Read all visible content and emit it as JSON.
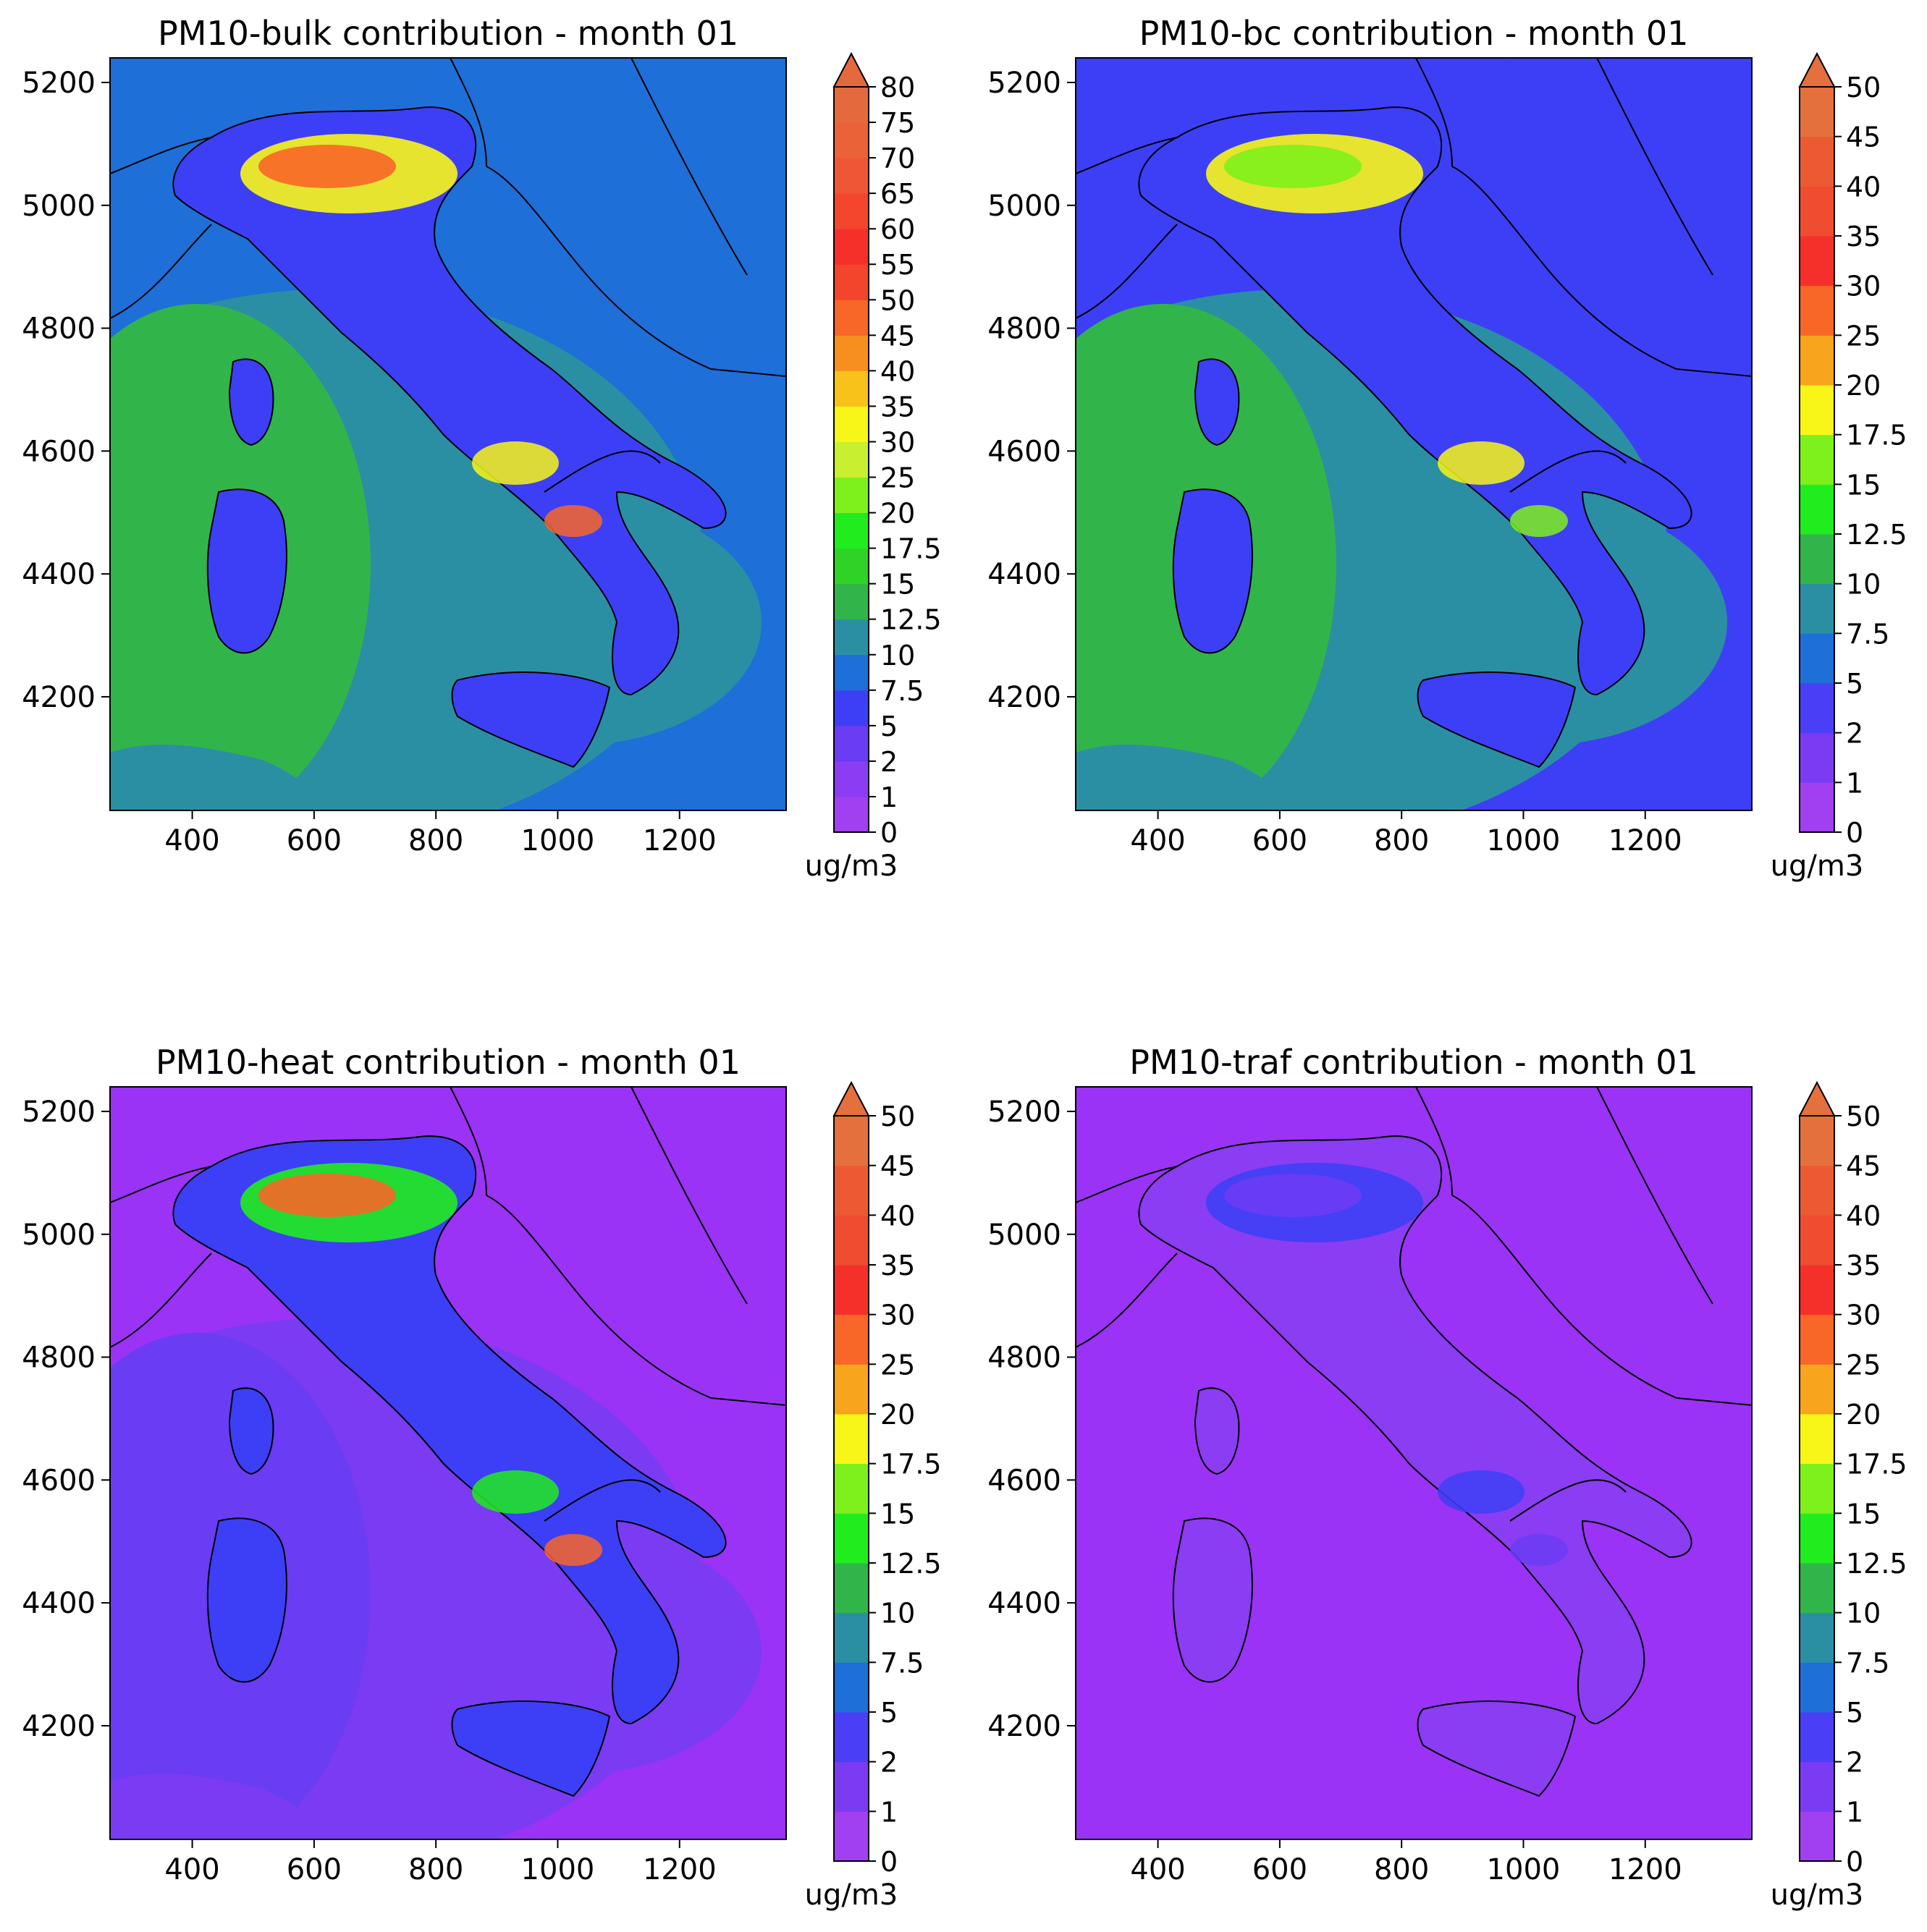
{
  "figure": {
    "panels": [
      {
        "title": "PM10-bulk contribution - month 01",
        "unit": "ug/m3",
        "x_ticks": [
          400,
          600,
          800,
          1000,
          1200
        ],
        "y_ticks": [
          5200,
          5000,
          4800,
          4600,
          4400,
          4200
        ],
        "colorbar_levels": [
          "0",
          "1",
          "2",
          "5",
          "7.5",
          "10",
          "12.5",
          "15",
          "17.5",
          "20",
          "25",
          "30",
          "35",
          "40",
          "45",
          "50",
          "55",
          "60",
          "65",
          "70",
          "75",
          "80"
        ],
        "colorbar_colors": [
          "#a040f0",
          "#8a3df2",
          "#6a3cf4",
          "#3d3ff6",
          "#1e6fd8",
          "#2b8fa3",
          "#31b54a",
          "#2fd326",
          "#20ec1e",
          "#7ef01c",
          "#c8f030",
          "#f8f618",
          "#f8c21a",
          "#f78f1e",
          "#f86628",
          "#f3442c",
          "#f5302a",
          "#f3462c",
          "#ef5636",
          "#ea6238",
          "#e46a3e"
        ],
        "field": {
          "base": "#1e6fd8",
          "sea": "#2b8fa3",
          "sea2": "#31b54a",
          "land": "#3d3ff6",
          "hot": "#f86628",
          "warm": "#f8f618"
        }
      },
      {
        "title": "PM10-bc contribution - month 01",
        "unit": "ug/m3",
        "x_ticks": [
          400,
          600,
          800,
          1000,
          1200
        ],
        "y_ticks": [
          5200,
          5000,
          4800,
          4600,
          4400,
          4200
        ],
        "colorbar_levels": [
          "0",
          "1",
          "2",
          "5",
          "7.5",
          "10",
          "12.5",
          "15",
          "17.5",
          "20",
          "25",
          "30",
          "35",
          "40",
          "45",
          "50"
        ],
        "colorbar_colors": [
          "#a040f0",
          "#7a3bf3",
          "#4a3ef6",
          "#1e6fd8",
          "#2b8fa3",
          "#31b54a",
          "#20ec1e",
          "#7ef01c",
          "#f8f618",
          "#f8a41c",
          "#f86628",
          "#f5302a",
          "#f04c30",
          "#ec5a34",
          "#e4703e"
        ],
        "field": {
          "base": "#3d3ff6",
          "sea": "#2b8fa3",
          "sea2": "#31b54a",
          "land": "#3d3ff6",
          "hot": "#7ef01c",
          "warm": "#f8f618"
        }
      },
      {
        "title": "PM10-heat contribution - month 01",
        "unit": "ug/m3",
        "x_ticks": [
          400,
          600,
          800,
          1000,
          1200
        ],
        "y_ticks": [
          5200,
          5000,
          4800,
          4600,
          4400,
          4200
        ],
        "colorbar_levels": [
          "0",
          "1",
          "2",
          "5",
          "7.5",
          "10",
          "12.5",
          "15",
          "17.5",
          "20",
          "25",
          "30",
          "35",
          "40",
          "45",
          "50"
        ],
        "colorbar_colors": [
          "#a040f0",
          "#7a3bf3",
          "#4a3ef6",
          "#1e6fd8",
          "#2b8fa3",
          "#31b54a",
          "#20ec1e",
          "#7ef01c",
          "#f8f618",
          "#f8a41c",
          "#f86628",
          "#f5302a",
          "#f04c30",
          "#ec5a34",
          "#e4703e"
        ],
        "field": {
          "base": "#9a33f6",
          "sea": "#7a3bf3",
          "sea2": "#6a3cf4",
          "land": "#3d3ff6",
          "hot": "#f86628",
          "warm": "#20ec1e"
        }
      },
      {
        "title": "PM10-traf contribution - month 01",
        "unit": "ug/m3",
        "x_ticks": [
          400,
          600,
          800,
          1000,
          1200
        ],
        "y_ticks": [
          5200,
          5000,
          4800,
          4600,
          4400,
          4200
        ],
        "colorbar_levels": [
          "0",
          "1",
          "2",
          "5",
          "7.5",
          "10",
          "12.5",
          "15",
          "17.5",
          "20",
          "25",
          "30",
          "35",
          "40",
          "45",
          "50"
        ],
        "colorbar_colors": [
          "#a040f0",
          "#7a3bf3",
          "#4a3ef6",
          "#1e6fd8",
          "#2b8fa3",
          "#31b54a",
          "#20ec1e",
          "#7ef01c",
          "#f8f618",
          "#f8a41c",
          "#f86628",
          "#f5302a",
          "#f04c30",
          "#ec5a34",
          "#e4703e"
        ],
        "field": {
          "base": "#9a33f6",
          "sea": "#9a33f6",
          "sea2": "#9a33f6",
          "land": "#8a3df2",
          "hot": "#6a3cf4",
          "warm": "#3d3ff6"
        }
      }
    ]
  }
}
